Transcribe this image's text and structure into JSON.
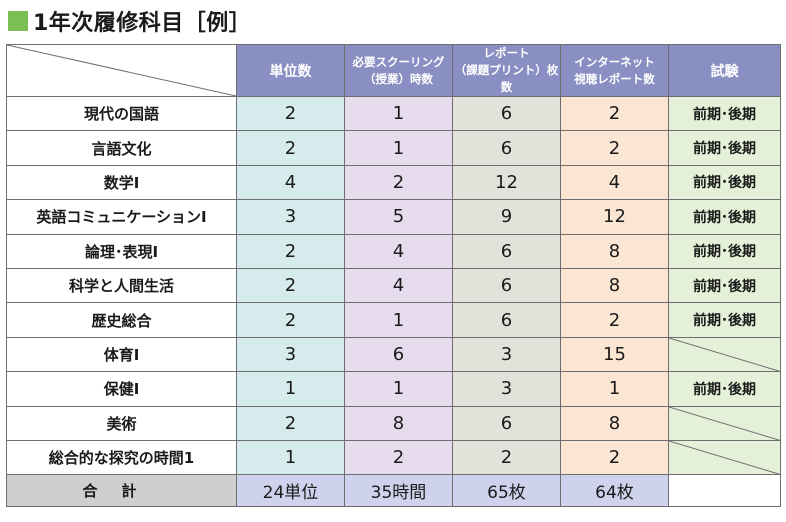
{
  "title": "1年次履修科目［例］",
  "headers": {
    "units": "単位数",
    "schooling_line1": "必要スクーリング",
    "schooling_line2": "（授業）時数",
    "report_line1": "レポート",
    "report_line2": "（課題プリント）枚数",
    "internet_line1": "インターネット",
    "internet_line2": "視聴レポート数",
    "exam": "試験"
  },
  "rows": [
    {
      "subject": "現代の国語",
      "units": "2",
      "schooling": "1",
      "report": "6",
      "internet": "2",
      "exam": "前期･後期"
    },
    {
      "subject": "言語文化",
      "units": "2",
      "schooling": "1",
      "report": "6",
      "internet": "2",
      "exam": "前期･後期"
    },
    {
      "subject": "数学Ⅰ",
      "units": "4",
      "schooling": "2",
      "report": "12",
      "internet": "4",
      "exam": "前期･後期"
    },
    {
      "subject": "英語コミュニケーションⅠ",
      "units": "3",
      "schooling": "5",
      "report": "9",
      "internet": "12",
      "exam": "前期･後期"
    },
    {
      "subject": "論理･表現Ⅰ",
      "units": "2",
      "schooling": "4",
      "report": "6",
      "internet": "8",
      "exam": "前期･後期"
    },
    {
      "subject": "科学と人間生活",
      "units": "2",
      "schooling": "4",
      "report": "6",
      "internet": "8",
      "exam": "前期･後期"
    },
    {
      "subject": "歴史総合",
      "units": "2",
      "schooling": "1",
      "report": "6",
      "internet": "2",
      "exam": "前期･後期"
    },
    {
      "subject": "体育Ⅰ",
      "units": "3",
      "schooling": "6",
      "report": "3",
      "internet": "15",
      "exam": ""
    },
    {
      "subject": "保健Ⅰ",
      "units": "1",
      "schooling": "1",
      "report": "3",
      "internet": "1",
      "exam": "前期･後期"
    },
    {
      "subject": "美術",
      "units": "2",
      "schooling": "8",
      "report": "6",
      "internet": "8",
      "exam": ""
    },
    {
      "subject": "総合的な探究の時間1",
      "units": "1",
      "schooling": "2",
      "report": "2",
      "internet": "2",
      "exam": ""
    }
  ],
  "total": {
    "label": "合計",
    "units": "24単位",
    "schooling": "35時間",
    "report": "65枚",
    "internet": "64枚"
  }
}
